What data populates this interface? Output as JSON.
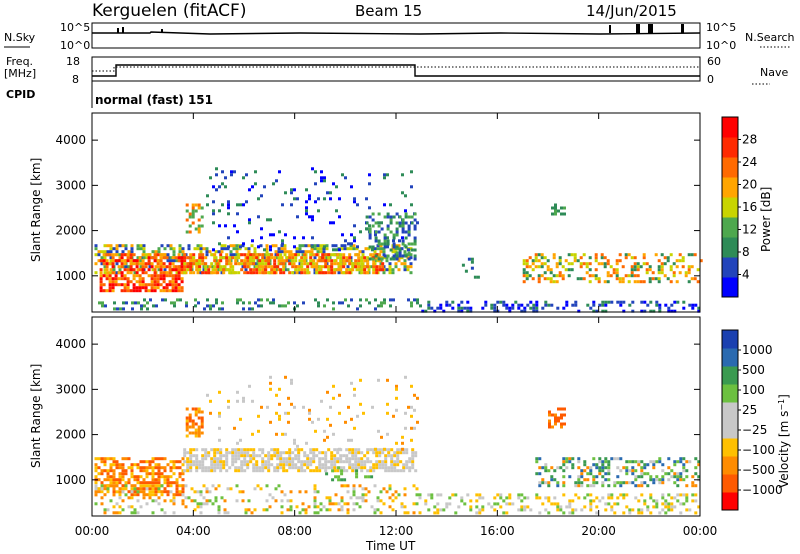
{
  "header": {
    "station": "Kerguelen (fitACF)",
    "beam": "Beam 15",
    "date": "14/Jun/2015"
  },
  "top_panel": {
    "left_label_a": "N.Sky",
    "left_tick_top": "10^5",
    "left_tick_bottom": "10^0",
    "right_tick_top": "10^5",
    "right_tick_bottom": "10^0",
    "right_label": "N.Search",
    "freq_label_a": "Freq.",
    "freq_label_b": "[MHz]",
    "freq_tick_top": "18",
    "freq_tick_bottom": "8",
    "nave_tick_top": "60",
    "nave_tick_bottom": "0",
    "nave_label": "Nave",
    "cpid_label": "CPID",
    "cpid_value": "normal (fast) 151"
  },
  "colors": {
    "power_scale": [
      "#0000ff",
      "#2244bb",
      "#2e8b57",
      "#4ea84e",
      "#c8d400",
      "#ffa500",
      "#ff6a00",
      "#ff2a00",
      "#ff0000"
    ],
    "velocity_scale": [
      "#ff0000",
      "#ff5a00",
      "#ff8c00",
      "#ffc000",
      "#c8c8c8",
      "#c8c8c8",
      "#6cc040",
      "#3a9a50",
      "#2a6ab0",
      "#1a40b0"
    ],
    "ground_scatter": "#c8c8c8"
  },
  "chart_data": [
    {
      "type": "heatmap",
      "title": "Power",
      "ylabel": "Slant Range [km]",
      "xlabel": "",
      "x_range_hours": [
        0,
        24
      ],
      "ylim": [
        200,
        4600
      ],
      "y_ticks": [
        "1000",
        "2000",
        "3000",
        "4000"
      ],
      "x_ticks": [
        "00:00",
        "04:00",
        "08:00",
        "12:00",
        "16:00",
        "20:00",
        "00:00"
      ],
      "colorbar_label": "Power [dB]",
      "colorbar_ticks": [
        "4",
        "8",
        "12",
        "16",
        "20",
        "24",
        "28"
      ]
    },
    {
      "type": "heatmap",
      "title": "Velocity",
      "ylabel": "Slant Range [km]",
      "xlabel": "Time UT",
      "x_range_hours": [
        0,
        24
      ],
      "ylim": [
        200,
        4600
      ],
      "y_ticks": [
        "1000",
        "2000",
        "3000",
        "4000"
      ],
      "x_ticks": [
        "00:00",
        "04:00",
        "08:00",
        "12:00",
        "16:00",
        "20:00",
        "00:00"
      ],
      "colorbar_label": "Velocity [m s^-1]",
      "colorbar_ticks": [
        "1000",
        "500",
        "100",
        "25",
        "−25",
        "−100",
        "−500",
        "−1000"
      ]
    }
  ]
}
